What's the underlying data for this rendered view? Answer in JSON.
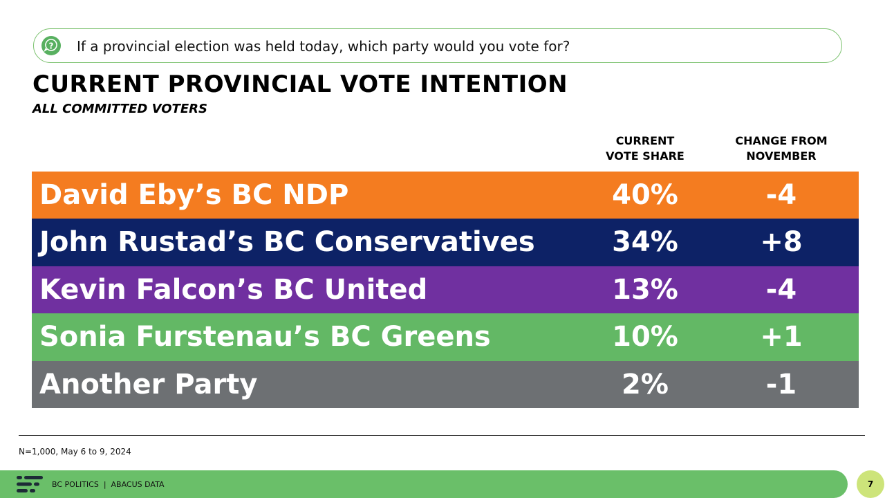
{
  "question": {
    "icon": "question-bubble-icon",
    "text": "If a provincial election was held today, which party would you vote for?"
  },
  "colors": {
    "accent_green": "#6abf69",
    "question_border": "#7cc26f",
    "badge": "#cde47a"
  },
  "chart_data": {
    "type": "table",
    "title": "CURRENT PROVINCIAL VOTE INTENTION",
    "subtitle": "ALL COMMITTED VOTERS",
    "headers": {
      "share": [
        "CURRENT",
        "VOTE SHARE"
      ],
      "change": [
        "CHANGE FROM",
        "NOVEMBER"
      ]
    },
    "rows": [
      {
        "party": "David Eby’s BC NDP",
        "share": "40%",
        "change": "-4",
        "color": "#f47c20"
      },
      {
        "party": "John Rustad’s BC Conservatives",
        "share": "34%",
        "change": "+8",
        "color": "#0d2266"
      },
      {
        "party": "Kevin Falcon’s BC United",
        "share": "13%",
        "change": "-4",
        "color": "#7030a0"
      },
      {
        "party": "Sonia Furstenau’s BC Greens",
        "share": "10%",
        "change": "+1",
        "color": "#63b865"
      },
      {
        "party": "Another Party",
        "share": "2%",
        "change": "-1",
        "color": "#6d7073"
      }
    ]
  },
  "source": "N=1,000, May 6 to 9, 2024",
  "footer": {
    "logo_icon": "abacus-logo-icon",
    "text": "BC POLITICS  |  ABACUS DATA",
    "page": "7"
  }
}
